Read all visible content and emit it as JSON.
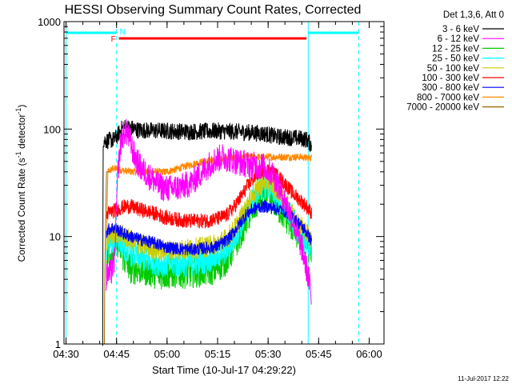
{
  "chart_data": {
    "type": "line",
    "title": "HESSI Observing Summary Count Rates, Corrected",
    "xlabel": "Start Time (10-Jul-17 04:29:22)",
    "ylabel": "Corrected Count Rate (s",
    "ylabel_sup": "-1",
    "ylabel_mid": " detector",
    "ylabel_end": ")",
    "timestamp": "11-Jul-2017 12:22",
    "x_unit": "minutes after 04:29:22",
    "xlim": [
      0,
      95
    ],
    "ylim": [
      1,
      1000
    ],
    "y_scale": "log",
    "x_ticks": [
      {
        "label": "04:30",
        "t": 0.6
      },
      {
        "label": "04:45",
        "t": 15.6
      },
      {
        "label": "05:00",
        "t": 30.6
      },
      {
        "label": "05:15",
        "t": 45.6
      },
      {
        "label": "05:30",
        "t": 60.6
      },
      {
        "label": "05:45",
        "t": 75.6
      },
      {
        "label": "06:00",
        "t": 90.6
      }
    ],
    "y_ticks": [
      {
        "label": "1",
        "v": 1
      },
      {
        "label": "10",
        "v": 10
      },
      {
        "label": "100",
        "v": 100
      },
      {
        "label": "1000",
        "v": 1000
      }
    ],
    "legend": {
      "position": "right",
      "header": "Det 1,3,6, Att 0",
      "entries": [
        {
          "label": "3 - 6 keV",
          "color": "#000000"
        },
        {
          "label": "6 - 12 keV",
          "color": "#ff00ff"
        },
        {
          "label": "12 - 25 keV",
          "color": "#00cc00"
        },
        {
          "label": "25 - 50 keV",
          "color": "#00ffff"
        },
        {
          "label": "50 - 100 keV",
          "color": "#cccc00"
        },
        {
          "label": "100 - 300 keV",
          "color": "#ff0000"
        },
        {
          "label": "300 - 800 keV",
          "color": "#0000ff"
        },
        {
          "label": "800 - 7000 keV",
          "color": "#ff8800"
        },
        {
          "label": "7000 - 20000 keV",
          "color": "#996600"
        }
      ]
    },
    "annotations": {
      "flare_flag": {
        "label": "F",
        "t_start": 16.3,
        "t_end": 72.0,
        "color": "#ff0000"
      },
      "night_flags": [
        {
          "label": "N",
          "t_start": 0.6,
          "t_end": 15.6
        },
        {
          "label": "",
          "t_start": 72.5,
          "t_end": 87.5
        }
      ],
      "saa_lines": {
        "solid": [
          0.6,
          72.5
        ],
        "dashed": [
          15.6,
          87.5
        ],
        "color": "#00ffff"
      }
    },
    "series": [
      {
        "name": "3 - 6 keV",
        "color": "#000000",
        "x": [
          11.5,
          11.6,
          13,
          15,
          16,
          17,
          18,
          20,
          22,
          26,
          30,
          35,
          40,
          45,
          50,
          55,
          60,
          63,
          66,
          70,
          72,
          72.8,
          73.5
        ],
        "y": [
          1,
          78,
          78,
          80,
          88,
          100,
          104,
          102,
          98,
          97,
          96,
          95,
          95,
          96,
          95,
          93,
          90,
          85,
          84,
          82,
          80,
          75,
          70
        ],
        "noise": 0.08
      },
      {
        "name": "6 - 12 keV",
        "color": "#ff00ff",
        "x": [
          12.5,
          13,
          14,
          15,
          16,
          17,
          18,
          19,
          20,
          21,
          22,
          23,
          24,
          25,
          26,
          28,
          30,
          32,
          35,
          38,
          41,
          44,
          47,
          50,
          53,
          56,
          59,
          62,
          64,
          66,
          68,
          69,
          70,
          71,
          72,
          73,
          73.5
        ],
        "y": [
          4,
          4.5,
          4.6,
          6,
          40,
          80,
          95,
          90,
          70,
          55,
          48,
          42,
          40,
          37,
          35,
          30,
          28,
          28,
          29,
          32,
          40,
          50,
          55,
          52,
          48,
          46,
          45,
          38,
          28,
          20,
          14,
          11,
          9,
          7,
          5,
          3.5,
          2.5
        ],
        "noise": 0.13
      },
      {
        "name": "12 - 25 keV",
        "color": "#00cc00",
        "x": [
          12.6,
          13,
          14,
          15,
          16,
          18,
          20,
          22,
          25,
          28,
          30,
          33,
          36,
          39,
          42,
          45,
          48,
          50,
          52,
          54,
          56,
          58,
          60,
          62,
          64,
          66,
          68,
          70,
          72,
          73.5
        ],
        "y": [
          6,
          6.5,
          7,
          8,
          9,
          6,
          5,
          5,
          4.8,
          4.5,
          4.5,
          4.6,
          4.6,
          4.7,
          4.8,
          5,
          6,
          7.5,
          10,
          14,
          18,
          22,
          24,
          22,
          18,
          15,
          12,
          10,
          9,
          7
        ],
        "noise": 0.15
      },
      {
        "name": "25 - 50 keV",
        "color": "#00ffff",
        "x": [
          12.6,
          13,
          14,
          15,
          16,
          18,
          20,
          22,
          25,
          28,
          30,
          33,
          36,
          39,
          42,
          45,
          48,
          50,
          52,
          54,
          56,
          58,
          60,
          62,
          64,
          66,
          68,
          70,
          72,
          73.5
        ],
        "y": [
          8,
          8.5,
          9,
          9.5,
          10,
          8,
          7,
          6.5,
          6,
          5.8,
          5.6,
          5.5,
          5.6,
          5.8,
          6,
          6.5,
          7.5,
          9,
          12,
          16,
          22,
          28,
          30,
          27,
          22,
          18,
          14,
          11,
          9,
          7.5
        ],
        "noise": 0.13
      },
      {
        "name": "50 - 100 keV",
        "color": "#cccc00",
        "x": [
          12.6,
          13,
          14,
          15,
          16,
          18,
          20,
          22,
          25,
          28,
          30,
          33,
          36,
          39,
          42,
          45,
          48,
          50,
          52,
          54,
          56,
          58,
          60,
          62,
          64,
          66,
          68,
          70,
          72,
          73.5
        ],
        "y": [
          9,
          9.5,
          10,
          10.5,
          11,
          10,
          9,
          8.5,
          8,
          7.5,
          7.5,
          7.5,
          7.6,
          7.8,
          8,
          8.5,
          9.5,
          11,
          14,
          18,
          24,
          30,
          33,
          30,
          25,
          20,
          16,
          13,
          11,
          9
        ],
        "noise": 0.1
      },
      {
        "name": "100 - 300 keV",
        "color": "#ff0000",
        "x": [
          12.6,
          13,
          14,
          15,
          16,
          18,
          20,
          22,
          25,
          28,
          30,
          33,
          36,
          39,
          42,
          45,
          48,
          50,
          52,
          54,
          56,
          58,
          60,
          62,
          64,
          66,
          68,
          70,
          72,
          73.5
        ],
        "y": [
          16,
          16.5,
          17,
          17.5,
          18,
          19,
          19,
          18,
          17,
          16,
          15,
          14.5,
          14,
          14,
          14,
          14.5,
          15.5,
          18,
          22,
          28,
          34,
          40,
          42,
          40,
          35,
          30,
          25,
          22,
          19,
          16.5
        ],
        "noise": 0.07
      },
      {
        "name": "300 - 800 keV",
        "color": "#0000ff",
        "x": [
          12.6,
          13,
          14,
          15,
          16,
          18,
          20,
          22,
          25,
          28,
          30,
          33,
          36,
          39,
          42,
          45,
          48,
          50,
          52,
          54,
          56,
          58,
          60,
          62,
          64,
          66,
          68,
          70,
          72,
          73.5
        ],
        "y": [
          11,
          11.5,
          12,
          12,
          11.5,
          10.5,
          10,
          9.5,
          9,
          8.5,
          8,
          7.8,
          7.6,
          7.6,
          7.8,
          8,
          9,
          10.5,
          13,
          16,
          18,
          19,
          19,
          18.5,
          18,
          17,
          15,
          13,
          11,
          9
        ],
        "noise": 0.06
      },
      {
        "name": "800 - 7000 keV",
        "color": "#ff8800",
        "x": [
          12.6,
          13,
          14,
          15,
          16,
          18,
          20,
          22,
          25,
          28,
          30,
          33,
          36,
          39,
          42,
          45,
          48,
          50,
          52,
          54,
          56,
          58,
          60,
          62,
          64,
          66,
          68,
          70,
          72,
          73.5
        ],
        "y": [
          4,
          40,
          42,
          43,
          42,
          41,
          40,
          40,
          40,
          40,
          40,
          42,
          45,
          48,
          50,
          52,
          53,
          54,
          54,
          55,
          55,
          55,
          55,
          55,
          55,
          55,
          55,
          55,
          54,
          54
        ],
        "noise": 0.035
      },
      {
        "name": "7000 - 20000 keV",
        "color": "#996600",
        "x": [
          12.0,
          12.1,
          12.6,
          13.5
        ],
        "y": [
          1,
          4,
          40,
          40
        ],
        "noise": 0
      }
    ]
  }
}
